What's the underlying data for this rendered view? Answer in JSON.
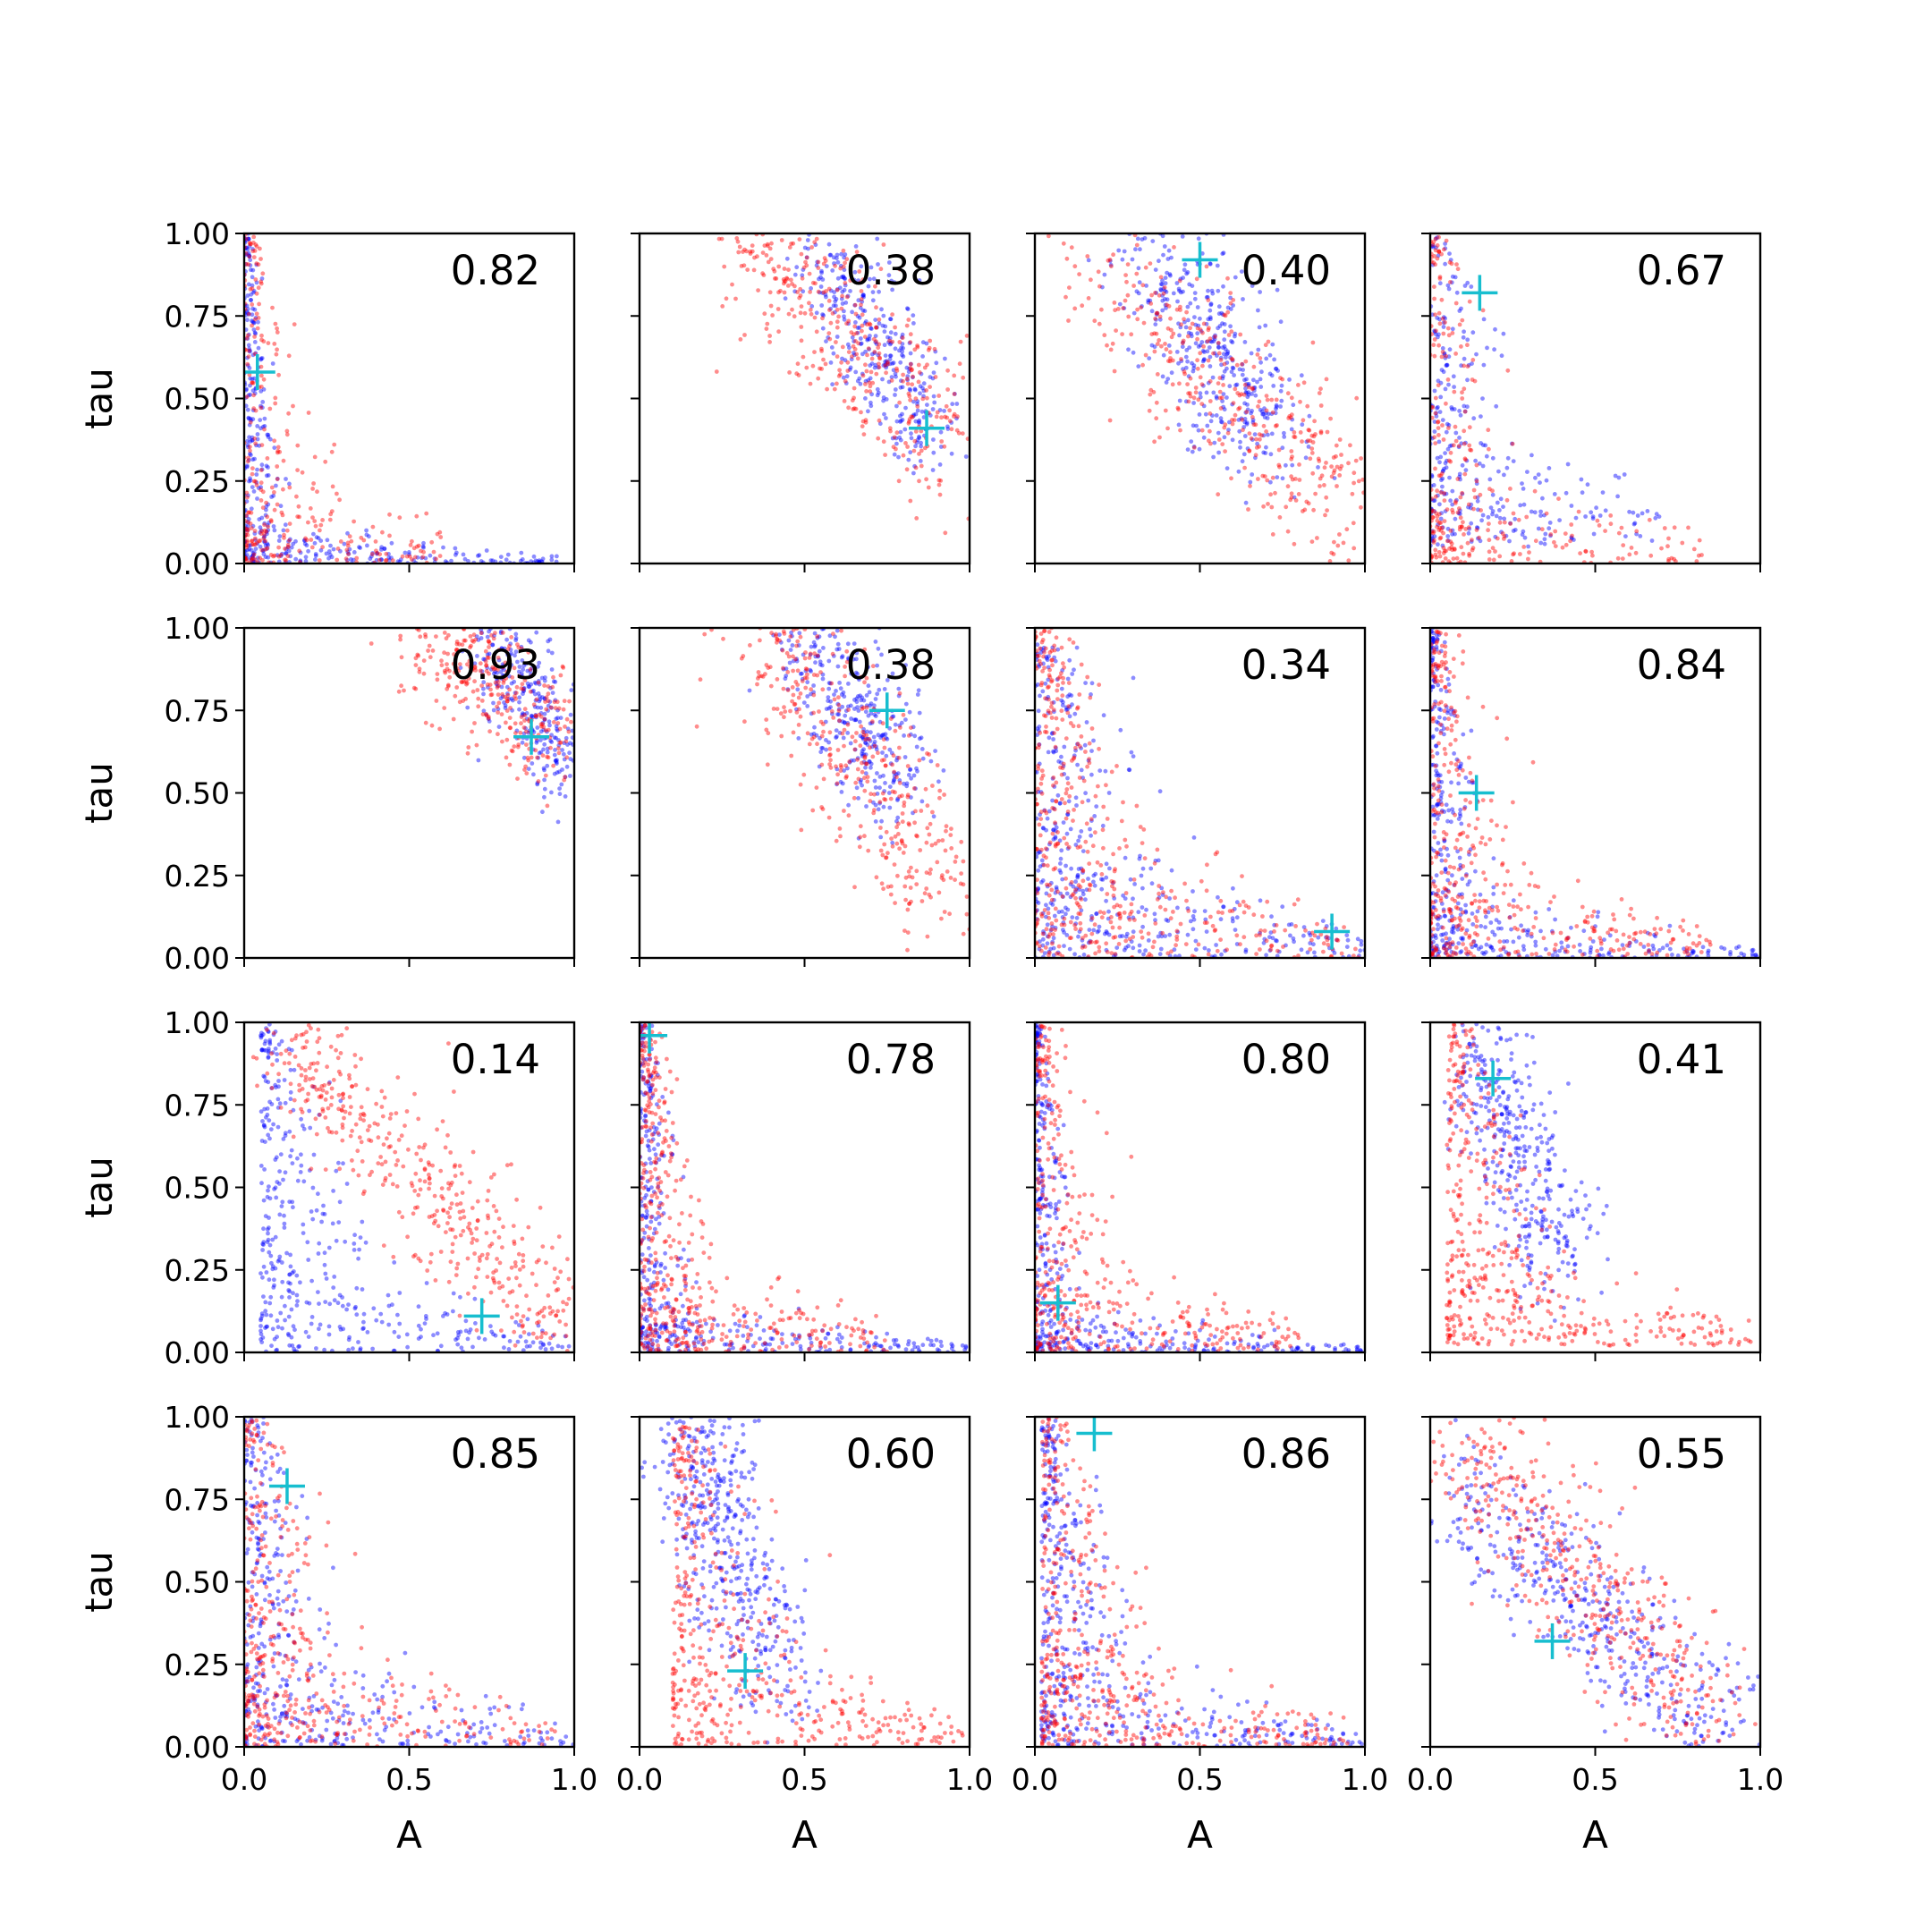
{
  "chart_data": {
    "type": "scatter",
    "grid": false,
    "layout": "4x4 grid of scatter panels",
    "xlabel": "A",
    "ylabel": "tau",
    "xlim": [
      0,
      1
    ],
    "ylim": [
      0,
      1
    ],
    "x_ticks": [
      0.0,
      0.5,
      1.0
    ],
    "x_tick_labels": [
      "0.0",
      "0.5",
      "1.0"
    ],
    "y_ticks": [
      0.0,
      0.25,
      0.5,
      0.75,
      1.0
    ],
    "y_tick_labels": [
      "0.00",
      "0.25",
      "0.50",
      "0.75",
      "1.00"
    ],
    "colors": {
      "series_a": "#0000ff",
      "series_b": "#ff0000",
      "marker": "#17becf"
    },
    "note": "Each panel shows two point clouds (blue and red) with a cyan '+' marker at the true parameter value; the number in each panel is printed in its upper-right corner.",
    "panels": [
      {
        "label": "0.82",
        "marker": [
          0.04,
          0.58
        ],
        "clouds": [
          {
            "color": "blue",
            "n": 400,
            "shape": "L",
            "xr": [
              0.0,
              0.95
            ],
            "yr": [
              0.0,
              1.0
            ],
            "k": 0.06
          },
          {
            "color": "red",
            "n": 300,
            "shape": "L",
            "xr": [
              0.0,
              0.6
            ],
            "yr": [
              0.0,
              1.0
            ],
            "k": 0.12
          }
        ]
      },
      {
        "label": "0.38",
        "marker": [
          0.87,
          0.41
        ],
        "clouds": [
          {
            "color": "blue",
            "n": 350,
            "shape": "band",
            "x0": 0.55,
            "y0": 0.95,
            "x1": 0.9,
            "y1": 0.35,
            "w": 0.07
          },
          {
            "color": "red",
            "n": 400,
            "shape": "band",
            "x0": 0.35,
            "y0": 1.0,
            "x1": 0.98,
            "y1": 0.3,
            "w": 0.1
          }
        ]
      },
      {
        "label": "0.40",
        "marker": [
          0.5,
          0.92
        ],
        "clouds": [
          {
            "color": "blue",
            "n": 400,
            "shape": "band",
            "x0": 0.35,
            "y0": 0.95,
            "x1": 0.72,
            "y1": 0.35,
            "w": 0.09
          },
          {
            "color": "red",
            "n": 400,
            "shape": "band",
            "x0": 0.25,
            "y0": 0.85,
            "x1": 0.98,
            "y1": 0.12,
            "w": 0.1
          }
        ]
      },
      {
        "label": "0.67",
        "marker": [
          0.15,
          0.82
        ],
        "clouds": [
          {
            "color": "blue",
            "n": 300,
            "shape": "L",
            "xr": [
              0.0,
              0.7
            ],
            "yr": [
              0.05,
              1.0
            ],
            "k": 0.18
          },
          {
            "color": "red",
            "n": 300,
            "shape": "L",
            "xr": [
              0.0,
              0.85
            ],
            "yr": [
              0.0,
              1.0
            ],
            "k": 0.14
          }
        ]
      },
      {
        "label": "0.93",
        "marker": [
          0.87,
          0.67
        ],
        "clouds": [
          {
            "color": "blue",
            "n": 300,
            "shape": "band",
            "x0": 0.75,
            "y0": 1.0,
            "x1": 0.98,
            "y1": 0.55,
            "w": 0.06
          },
          {
            "color": "red",
            "n": 350,
            "shape": "band",
            "x0": 0.55,
            "y0": 1.0,
            "x1": 0.95,
            "y1": 0.65,
            "w": 0.08
          }
        ]
      },
      {
        "label": "0.38",
        "marker": [
          0.75,
          0.75
        ],
        "clouds": [
          {
            "color": "blue",
            "n": 350,
            "shape": "band",
            "x0": 0.5,
            "y0": 0.98,
            "x1": 0.8,
            "y1": 0.5,
            "w": 0.08
          },
          {
            "color": "red",
            "n": 400,
            "shape": "band",
            "x0": 0.4,
            "y0": 0.98,
            "x1": 0.95,
            "y1": 0.15,
            "w": 0.1
          }
        ]
      },
      {
        "label": "0.34",
        "marker": [
          0.9,
          0.08
        ],
        "clouds": [
          {
            "color": "blue",
            "n": 450,
            "shape": "L",
            "xr": [
              0.0,
              1.0
            ],
            "yr": [
              0.0,
              0.95
            ],
            "k": 0.22
          },
          {
            "color": "red",
            "n": 450,
            "shape": "L",
            "xr": [
              0.0,
              0.98
            ],
            "yr": [
              0.0,
              1.0
            ],
            "k": 0.24
          }
        ]
      },
      {
        "label": "0.84",
        "marker": [
          0.14,
          0.5
        ],
        "clouds": [
          {
            "color": "blue",
            "n": 400,
            "shape": "L",
            "xr": [
              0.0,
              1.0
            ],
            "yr": [
              0.0,
              1.0
            ],
            "k": 0.1
          },
          {
            "color": "red",
            "n": 400,
            "shape": "L",
            "xr": [
              0.0,
              0.85
            ],
            "yr": [
              0.0,
              1.0
            ],
            "k": 0.16
          }
        ]
      },
      {
        "label": "0.14",
        "marker": [
          0.72,
          0.11
        ],
        "clouds": [
          {
            "color": "blue",
            "n": 400,
            "shape": "L",
            "xr": [
              0.05,
              1.0
            ],
            "yr": [
              0.0,
              1.0
            ],
            "k": 0.2
          },
          {
            "color": "red",
            "n": 450,
            "shape": "band",
            "x0": 0.1,
            "y0": 0.98,
            "x1": 0.98,
            "y1": 0.05,
            "w": 0.08
          }
        ]
      },
      {
        "label": "0.78",
        "marker": [
          0.03,
          0.96
        ],
        "clouds": [
          {
            "color": "blue",
            "n": 400,
            "shape": "L",
            "xr": [
              0.0,
              1.0
            ],
            "yr": [
              0.0,
              1.0
            ],
            "k": 0.08
          },
          {
            "color": "red",
            "n": 450,
            "shape": "L",
            "xr": [
              0.0,
              0.75
            ],
            "yr": [
              0.0,
              1.0
            ],
            "k": 0.14
          }
        ]
      },
      {
        "label": "0.80",
        "marker": [
          0.07,
          0.15
        ],
        "clouds": [
          {
            "color": "blue",
            "n": 400,
            "shape": "L",
            "xr": [
              0.0,
              1.0
            ],
            "yr": [
              0.0,
              1.0
            ],
            "k": 0.07
          },
          {
            "color": "red",
            "n": 400,
            "shape": "L",
            "xr": [
              0.0,
              0.8
            ],
            "yr": [
              0.0,
              1.0
            ],
            "k": 0.15
          }
        ]
      },
      {
        "label": "0.41",
        "marker": [
          0.19,
          0.83
        ],
        "clouds": [
          {
            "color": "blue",
            "n": 400,
            "shape": "band",
            "x0": 0.12,
            "y0": 1.0,
            "x1": 0.4,
            "y1": 0.25,
            "w": 0.08
          },
          {
            "color": "red",
            "n": 450,
            "shape": "L",
            "xr": [
              0.05,
              0.98
            ],
            "yr": [
              0.02,
              1.0
            ],
            "k": 0.2
          }
        ]
      },
      {
        "label": "0.85",
        "marker": [
          0.13,
          0.79
        ],
        "clouds": [
          {
            "color": "blue",
            "n": 400,
            "shape": "L",
            "xr": [
              0.0,
              1.0
            ],
            "yr": [
              0.0,
              1.0
            ],
            "k": 0.17
          },
          {
            "color": "red",
            "n": 400,
            "shape": "L",
            "xr": [
              0.0,
              0.95
            ],
            "yr": [
              0.0,
              1.0
            ],
            "k": 0.2
          }
        ]
      },
      {
        "label": "0.60",
        "marker": [
          0.32,
          0.23
        ],
        "clouds": [
          {
            "color": "blue",
            "n": 450,
            "shape": "band",
            "x0": 0.15,
            "y0": 1.0,
            "x1": 0.4,
            "y1": 0.2,
            "w": 0.08
          },
          {
            "color": "red",
            "n": 450,
            "shape": "L",
            "xr": [
              0.1,
              0.98
            ],
            "yr": [
              0.0,
              0.98
            ],
            "k": 0.24
          }
        ]
      },
      {
        "label": "0.86",
        "marker": [
          0.18,
          0.95
        ],
        "clouds": [
          {
            "color": "blue",
            "n": 450,
            "shape": "L",
            "xr": [
              0.02,
              1.0
            ],
            "yr": [
              0.0,
              1.0
            ],
            "k": 0.16
          },
          {
            "color": "red",
            "n": 450,
            "shape": "L",
            "xr": [
              0.02,
              0.95
            ],
            "yr": [
              0.0,
              1.0
            ],
            "k": 0.2
          }
        ]
      },
      {
        "label": "0.55",
        "marker": [
          0.37,
          0.32
        ],
        "clouds": [
          {
            "color": "blue",
            "n": 450,
            "shape": "band",
            "x0": 0.05,
            "y0": 0.8,
            "x1": 0.95,
            "y1": 0.0,
            "w": 0.09
          },
          {
            "color": "red",
            "n": 450,
            "shape": "band",
            "x0": 0.08,
            "y0": 0.95,
            "x1": 0.9,
            "y1": 0.0,
            "w": 0.1
          }
        ]
      }
    ]
  }
}
